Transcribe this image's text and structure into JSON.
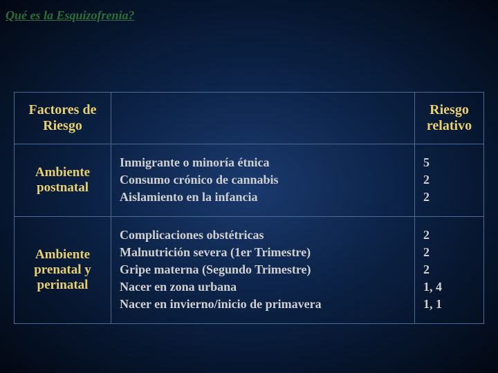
{
  "title": "Qué es la Esquizofrenia?",
  "headers": {
    "col1": "Factores de Riesgo",
    "col2": "",
    "col3": "Riesgo relativo"
  },
  "rows": [
    {
      "category": "Ambiente postnatal",
      "items": [
        {
          "desc": "Inmigrante o minoría étnica",
          "risk": "5"
        },
        {
          "desc": "Consumo crónico de cannabis",
          "risk": "2"
        },
        {
          "desc": "Aislamiento en la infancia",
          "risk": "2"
        }
      ]
    },
    {
      "category": "Ambiente prenatal y perinatal",
      "items": [
        {
          "desc": "Complicaciones obstétricas",
          "risk": "2"
        },
        {
          "desc": "Malnutrición severa (1er Trimestre)",
          "risk": "2"
        },
        {
          "desc": "Gripe materna (Segundo Trimestre)",
          "risk": "2"
        },
        {
          "desc": "Nacer en zona urbana",
          "risk": "1, 4"
        },
        {
          "desc": "Nacer en invierno/inicio de primavera",
          "risk": "1, 1"
        }
      ]
    }
  ],
  "colors": {
    "title": "#2a6e3a",
    "header_text": "#e8d070",
    "body_text": "#d0d0d0",
    "border": "#4a6a9a",
    "bg_center": "#1a3a6e",
    "bg_edge": "#020812"
  }
}
